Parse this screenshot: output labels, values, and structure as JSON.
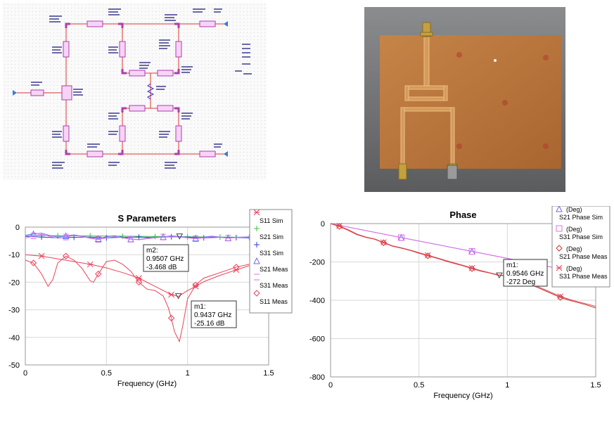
{
  "chart_data": [
    {
      "type": "line",
      "title": "S Parameters",
      "xlabel": "Frequency (GHz)",
      "ylabel": "",
      "xlim": [
        0,
        1.5
      ],
      "ylim": [
        -50,
        0
      ],
      "xticks": [
        "0",
        "0.5",
        "1",
        "1.5"
      ],
      "yticks": [
        "0",
        "-10",
        "-20",
        "-30",
        "-40",
        "-50"
      ],
      "grid": true,
      "legend": "right",
      "series": [
        {
          "name": "S11 Sim",
          "color": "#e8435a",
          "x": [
            0,
            0.1,
            0.2,
            0.3,
            0.4,
            0.5,
            0.6,
            0.7,
            0.8,
            0.85,
            0.9,
            0.9437,
            1.0,
            1.05,
            1.1,
            1.2,
            1.3,
            1.38
          ],
          "y": [
            -10,
            -10.5,
            -11.5,
            -12.5,
            -13.5,
            -14.8,
            -16.5,
            -18.5,
            -21.5,
            -23,
            -24.5,
            -25.16,
            -23,
            -21.5,
            -19.8,
            -17.5,
            -15.5,
            -14
          ]
        },
        {
          "name": "S21 Sim",
          "color": "#3fbf3f",
          "x": [
            0,
            0.2,
            0.4,
            0.6,
            0.8,
            1.0,
            1.2,
            1.38
          ],
          "y": [
            -3,
            -3.1,
            -3.2,
            -3.3,
            -3.4,
            -3.5,
            -3.6,
            -3.7
          ]
        },
        {
          "name": "S31 Sim",
          "color": "#2b3fd6",
          "x": [
            0,
            0.1,
            0.2,
            0.3,
            0.4,
            0.5,
            0.6,
            0.7,
            0.8,
            0.9,
            1.0,
            1.1,
            1.2,
            1.3,
            1.38
          ],
          "y": [
            -3.4,
            -3.6,
            -3.9,
            -3.7,
            -3.6,
            -3.9,
            -3.7,
            -3.6,
            -3.8,
            -3.5,
            -3.6,
            -3.9,
            -3.7,
            -3.8,
            -3.9
          ]
        },
        {
          "name": "S21 Meas",
          "color": "#6a6aff",
          "x": [
            0,
            0.05,
            0.1,
            0.15,
            0.2,
            0.25,
            0.3,
            0.35,
            0.4,
            0.45,
            0.5,
            0.55,
            0.6,
            0.65,
            0.7,
            0.75,
            0.8,
            0.85,
            0.9,
            0.95,
            1.0,
            1.05,
            1.1,
            1.15,
            1.2,
            1.25,
            1.3,
            1.38
          ],
          "y": [
            -3,
            -2.5,
            -2.2,
            -3.0,
            -3.6,
            -3.2,
            -2.8,
            -3.3,
            -3.8,
            -4.2,
            -3.5,
            -3.1,
            -3.6,
            -4.3,
            -4.5,
            -4.0,
            -3.7,
            -3.5,
            -3.2,
            -3.4,
            -3.8,
            -4.0,
            -3.6,
            -3.3,
            -3.6,
            -3.9,
            -3.7,
            -3.5
          ]
        },
        {
          "name": "S31 Meas",
          "color": "#e070e0",
          "x": [
            0,
            0.05,
            0.1,
            0.15,
            0.2,
            0.25,
            0.3,
            0.35,
            0.4,
            0.45,
            0.5,
            0.55,
            0.6,
            0.65,
            0.7,
            0.75,
            0.8,
            0.85,
            0.9,
            0.95,
            1.0,
            1.05,
            1.1,
            1.15,
            1.2,
            1.25,
            1.3,
            1.38
          ],
          "y": [
            -4,
            -3.2,
            -2.6,
            -3.4,
            -4.0,
            -3.6,
            -3.0,
            -3.4,
            -4.1,
            -4.5,
            -3.9,
            -3.5,
            -3.9,
            -4.4,
            -4.6,
            -4.2,
            -3.9,
            -3.6,
            -3.5,
            -3.6,
            -3.9,
            -4.2,
            -3.9,
            -3.5,
            -3.7,
            -4.0,
            -3.8,
            -3.6
          ]
        },
        {
          "name": "S11 Meas",
          "color": "#e8435a",
          "x": [
            0,
            0.05,
            0.1,
            0.14,
            0.17,
            0.2,
            0.25,
            0.3,
            0.35,
            0.4,
            0.42,
            0.45,
            0.5,
            0.55,
            0.6,
            0.65,
            0.7,
            0.75,
            0.8,
            0.85,
            0.88,
            0.9,
            0.92,
            0.95,
            0.97,
            1.0,
            1.05,
            1.1,
            1.15,
            1.2,
            1.25,
            1.3,
            1.38
          ],
          "y": [
            -12,
            -13,
            -17,
            -21.5,
            -19,
            -13,
            -10.5,
            -12,
            -15,
            -19.5,
            -20,
            -17,
            -12.5,
            -12,
            -13.5,
            -16,
            -20,
            -22.5,
            -23,
            -25,
            -29,
            -33,
            -38,
            -41.5,
            -36,
            -26,
            -21,
            -18.5,
            -17.5,
            -16.5,
            -15.5,
            -14.5,
            -13.5
          ]
        }
      ],
      "markers": [
        {
          "label": "m2:",
          "freq": "0.9507 GHz",
          "value": "-3.468 dB",
          "x": 0.9507,
          "y": -3.468
        },
        {
          "label": "m1:",
          "freq": "0.9437 GHz",
          "value": "-25.16 dB",
          "x": 0.9437,
          "y": -25.16
        }
      ]
    },
    {
      "type": "line",
      "title": "Phase",
      "xlabel": "Frequency (GHz)",
      "ylabel": "",
      "xlim": [
        0,
        1.5
      ],
      "ylim": [
        -800,
        0
      ],
      "xticks": [
        "0",
        "0.5",
        "1",
        "1.5"
      ],
      "yticks": [
        "0",
        "-200",
        "-400",
        "-600",
        "-800"
      ],
      "grid": true,
      "legend": "right",
      "series": [
        {
          "name": "S21 Phase Sim",
          "unit": "(Deg)",
          "color": "#6a6aff",
          "x": [
            0,
            0.4,
            0.8,
            1.2,
            1.5
          ],
          "y": [
            0,
            -73,
            -145,
            -218,
            -272
          ]
        },
        {
          "name": "S31 Phase Sim",
          "unit": "(Deg)",
          "color": "#e070e0",
          "x": [
            0,
            0.4,
            0.8,
            1.2,
            1.5
          ],
          "y": [
            0,
            -73,
            -145,
            -218,
            -272
          ]
        },
        {
          "name": "S21 Phase Meas",
          "unit": "(Deg)",
          "color": "#c0392b",
          "x": [
            0,
            0.05,
            0.1,
            0.15,
            0.2,
            0.25,
            0.3,
            0.35,
            0.4,
            0.45,
            0.5,
            0.55,
            0.6,
            0.65,
            0.7,
            0.75,
            0.8,
            0.85,
            0.9,
            0.95,
            1.0,
            1.05,
            1.1,
            1.15,
            1.2,
            1.25,
            1.3,
            1.35,
            1.4,
            1.45,
            1.5
          ],
          "y": [
            0,
            -15,
            -35,
            -58,
            -72,
            -82,
            -100,
            -118,
            -128,
            -140,
            -155,
            -168,
            -180,
            -195,
            -208,
            -220,
            -235,
            -248,
            -258,
            -270,
            -272,
            -285,
            -300,
            -325,
            -345,
            -365,
            -385,
            -400,
            -412,
            -425,
            -440
          ]
        },
        {
          "name": "S31 Phase Meas",
          "unit": "(Deg)",
          "color": "#e8435a",
          "x": [
            0,
            0.05,
            0.1,
            0.15,
            0.2,
            0.25,
            0.3,
            0.35,
            0.4,
            0.45,
            0.5,
            0.55,
            0.6,
            0.65,
            0.7,
            0.75,
            0.8,
            0.85,
            0.9,
            0.95,
            1.0,
            1.05,
            1.1,
            1.15,
            1.2,
            1.25,
            1.3,
            1.35,
            1.4,
            1.45,
            1.5
          ],
          "y": [
            0,
            -12,
            -32,
            -55,
            -70,
            -80,
            -98,
            -116,
            -126,
            -138,
            -152,
            -165,
            -178,
            -192,
            -205,
            -218,
            -232,
            -245,
            -256,
            -268,
            -272,
            -283,
            -298,
            -320,
            -340,
            -360,
            -380,
            -395,
            -408,
            -420,
            -432
          ]
        }
      ],
      "markers": [
        {
          "label": "m1:",
          "freq": "0.9546 GHz",
          "value": "-272 Deg",
          "x": 0.9546,
          "y": -272
        }
      ]
    }
  ]
}
